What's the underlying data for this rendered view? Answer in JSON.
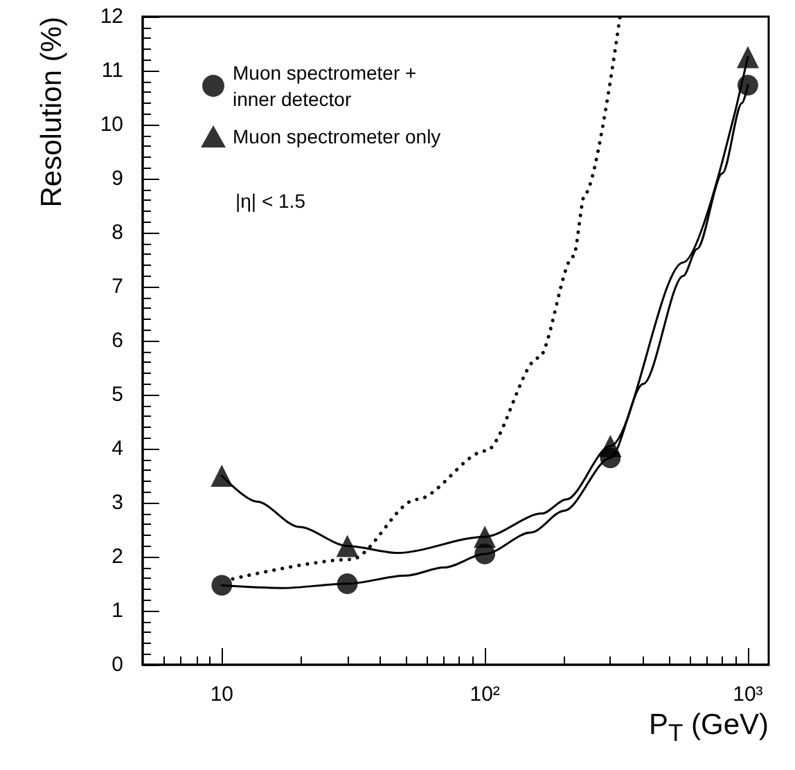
{
  "chart_data": {
    "type": "scatter",
    "xlabel": "P$_{T}$ (GeV)",
    "ylabel": "Resolution (%)",
    "log": "x",
    "xlim": [
      5,
      1200
    ],
    "xticks": [
      {
        "value": 6,
        "label": null
      },
      {
        "value": 7,
        "label": null
      },
      {
        "value": 8,
        "label": null
      },
      {
        "value": 9,
        "label": null
      },
      10,
      {
        "value": 20,
        "label": null
      },
      {
        "value": 30,
        "label": null
      },
      {
        "value": 40,
        "label": null
      },
      {
        "value": 50,
        "label": null
      },
      {
        "value": 60,
        "label": null
      },
      {
        "value": 70,
        "label": null
      },
      {
        "value": 80,
        "label": null
      },
      {
        "value": 90,
        "label": null
      },
      {
        "value": 100,
        "label": "10²"
      },
      {
        "value": 200,
        "label": null
      },
      {
        "value": 300,
        "label": null
      },
      {
        "value": 400,
        "label": null
      },
      {
        "value": 500,
        "label": null
      },
      {
        "value": 600,
        "label": null
      },
      {
        "value": 700,
        "label": null
      },
      {
        "value": 800,
        "label": null
      },
      {
        "value": 900,
        "label": null
      },
      {
        "value": 1000,
        "label": "10³"
      }
    ],
    "ylim": [
      0,
      12
    ],
    "yticks": [
      0,
      {
        "value": 0.2,
        "label": null
      },
      {
        "value": 0.4,
        "label": null
      },
      {
        "value": 0.6,
        "label": null
      },
      {
        "value": 0.8,
        "label": null
      },
      1,
      {
        "value": 1.2,
        "label": null
      },
      {
        "value": 1.4,
        "label": null
      },
      {
        "value": 1.6,
        "label": null
      },
      {
        "value": 1.8,
        "label": null
      },
      2,
      {
        "value": 2.2,
        "label": null
      },
      {
        "value": 2.4,
        "label": null
      },
      {
        "value": 2.6,
        "label": null
      },
      {
        "value": 2.8,
        "label": null
      },
      3,
      {
        "value": 3.2,
        "label": null
      },
      {
        "value": 3.4,
        "label": null
      },
      {
        "value": 3.6,
        "label": null
      },
      {
        "value": 3.8,
        "label": null
      },
      4,
      {
        "value": 4.2,
        "label": null
      },
      {
        "value": 4.4,
        "label": null
      },
      {
        "value": 4.6,
        "label": null
      },
      {
        "value": 4.8,
        "label": null
      },
      5,
      {
        "value": 5.2,
        "label": null
      },
      {
        "value": 5.4,
        "label": null
      },
      {
        "value": 5.6,
        "label": null
      },
      {
        "value": 5.8,
        "label": null
      },
      6,
      {
        "value": 6.2,
        "label": null
      },
      {
        "value": 6.4,
        "label": null
      },
      {
        "value": 6.6,
        "label": null
      },
      {
        "value": 6.8,
        "label": null
      },
      7,
      {
        "value": 7.2,
        "label": null
      },
      {
        "value": 7.4,
        "label": null
      },
      {
        "value": 7.6,
        "label": null
      },
      {
        "value": 7.8,
        "label": null
      },
      8,
      {
        "value": 8.2,
        "label": null
      },
      {
        "value": 8.4,
        "label": null
      },
      {
        "value": 8.6,
        "label": null
      },
      {
        "value": 8.8,
        "label": null
      },
      9,
      {
        "value": 9.2,
        "label": null
      },
      {
        "value": 9.4,
        "label": null
      },
      {
        "value": 9.6,
        "label": null
      },
      {
        "value": 9.8,
        "label": null
      },
      10,
      {
        "value": 10.2,
        "label": null
      },
      {
        "value": 10.4,
        "label": null
      },
      {
        "value": 10.6,
        "label": null
      },
      {
        "value": 10.8,
        "label": null
      },
      11,
      {
        "value": 11.2,
        "label": null
      },
      {
        "value": 11.4,
        "label": null
      },
      {
        "value": 11.6,
        "label": null
      },
      {
        "value": 11.8,
        "label": null
      },
      12
    ],
    "grid": false,
    "legend": "top left",
    "annotations": [
      "|η| < 1.5"
    ],
    "series": [
      {
        "name": "Muon spectrometer + inner detector",
        "marker": "circle",
        "color": "#000000",
        "x": [
          10,
          30,
          100,
          300,
          1000
        ],
        "values": [
          1.47,
          1.5,
          2.05,
          3.83,
          10.73
        ]
      },
      {
        "name": "Muon spectrometer only",
        "marker": "triangle",
        "color": "#000000",
        "x": [
          10,
          30,
          100,
          300,
          1000
        ],
        "values": [
          3.5,
          2.2,
          2.37,
          4.05,
          11.25
        ]
      },
      {
        "type": "line",
        "marker": "none",
        "line_style": "solid",
        "color": "#000000",
        "x": [
          10,
          17,
          30,
          50,
          70,
          100,
          150,
          200,
          300,
          400,
          568,
          641,
          800,
          950,
          1000
        ],
        "values": [
          1.47,
          1.42,
          1.5,
          1.65,
          1.8,
          2.05,
          2.45,
          2.85,
          3.83,
          5.2,
          7.2,
          7.7,
          9.1,
          10.4,
          10.73
        ]
      },
      {
        "type": "line",
        "marker": "none",
        "line_style": "solid",
        "color": "#000000",
        "x": [
          10,
          13.6,
          19.7,
          30,
          46.6,
          100,
          165,
          204,
          300,
          568,
          1000
        ],
        "values": [
          3.5,
          3.02,
          2.55,
          2.2,
          2.07,
          2.37,
          2.8,
          3.06,
          4.05,
          7.45,
          11.25
        ]
      },
      {
        "type": "line",
        "marker": "none",
        "line_style": "dotted",
        "color": "#000000",
        "x": [
          11,
          31,
          55,
          101,
          160,
          217,
          240,
          326
        ],
        "values": [
          1.59,
          1.95,
          3.06,
          3.96,
          5.68,
          7.56,
          8.71,
          11.98
        ]
      }
    ]
  }
}
